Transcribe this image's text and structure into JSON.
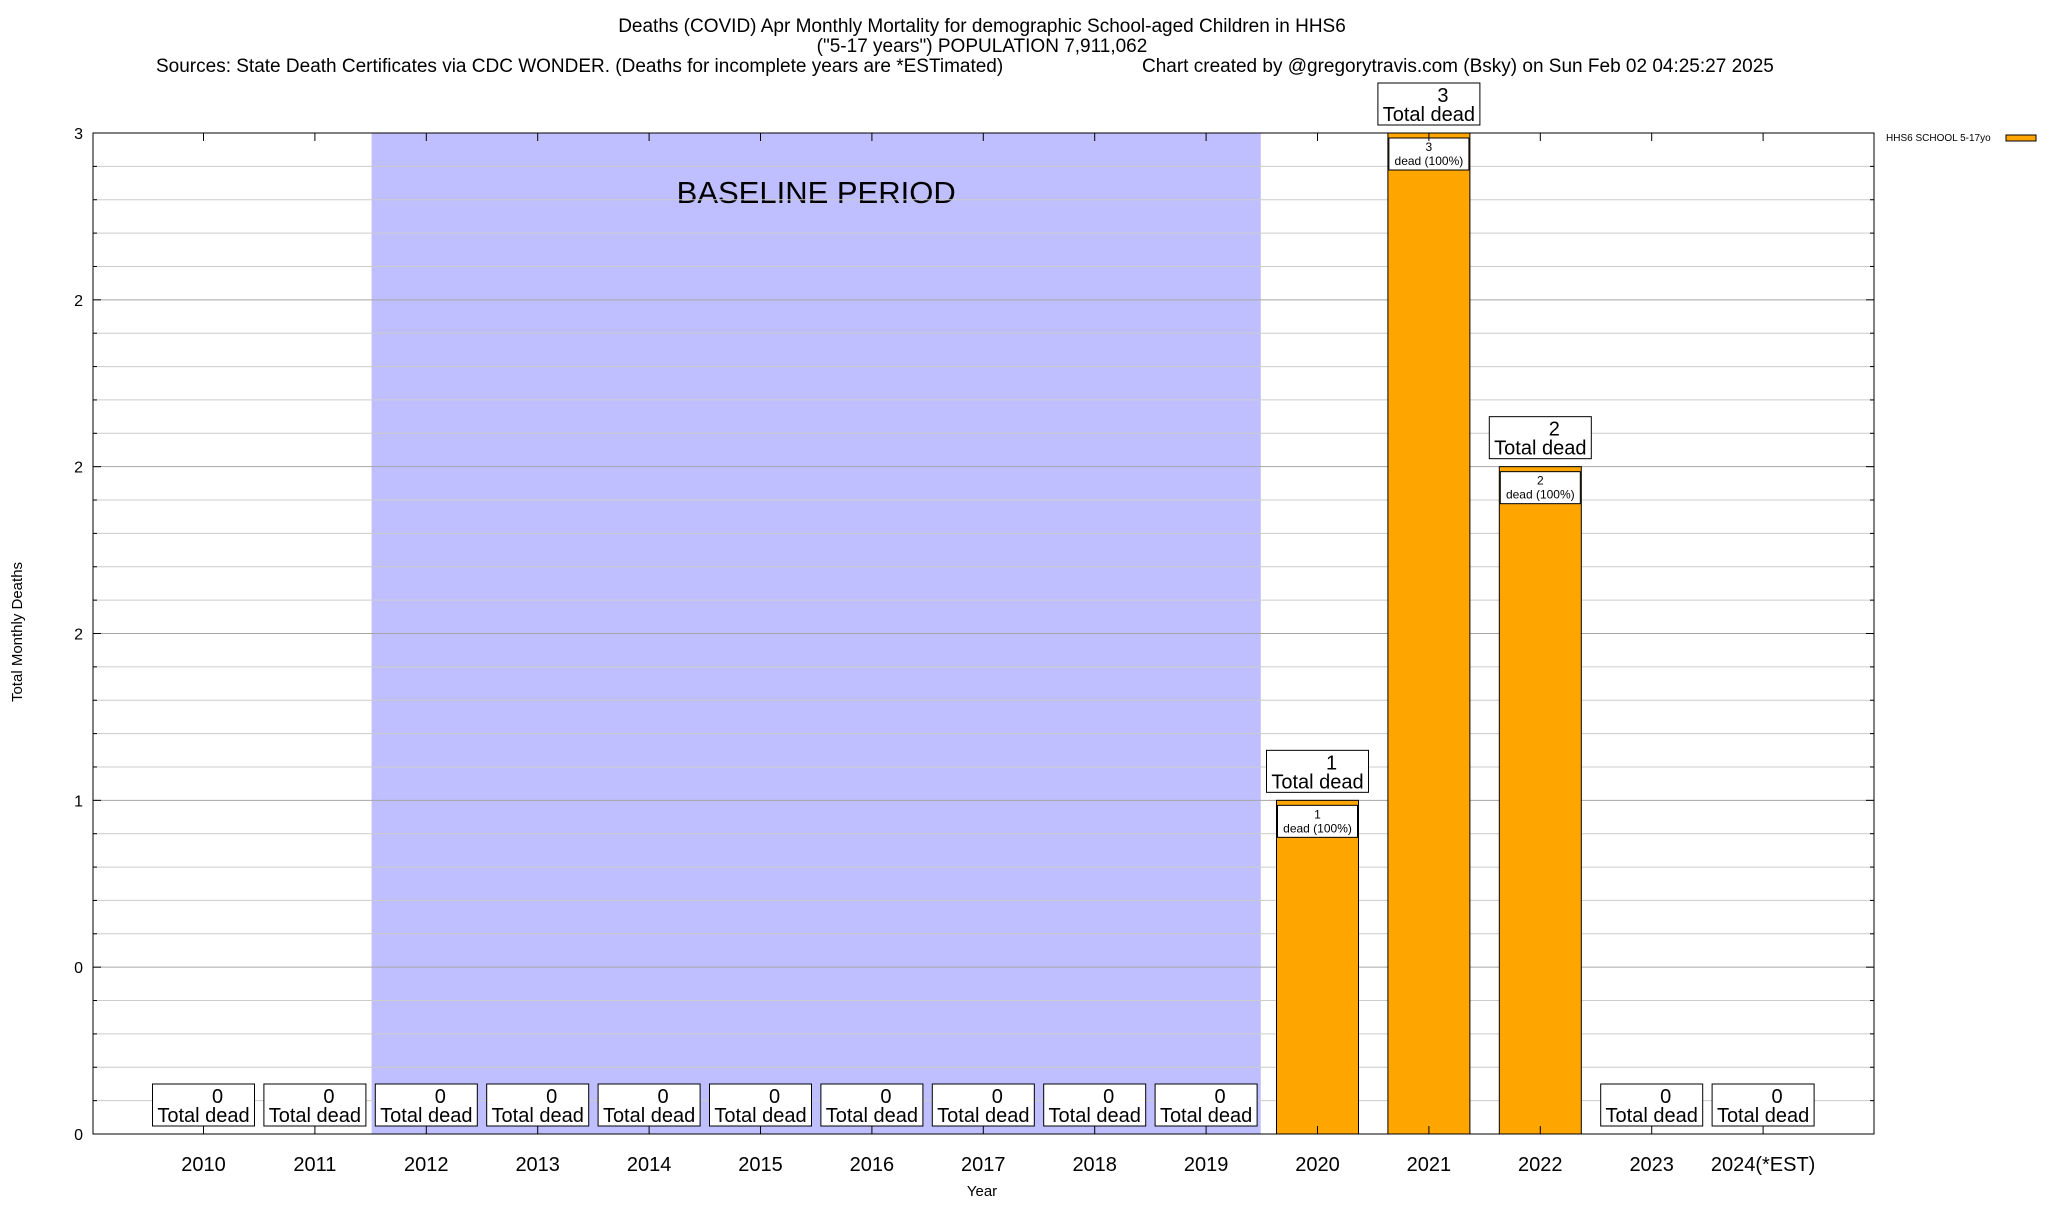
{
  "chart_data": {
    "type": "bar",
    "title_lines": [
      "Deaths (COVID) Apr Monthly Mortality for demographic School-aged Children in HHS6",
      "(\"5-17 years\") POPULATION 7,911,062"
    ],
    "sources": "Sources: State Death Certificates via CDC WONDER. (Deaths for incomplete years are *ESTimated)",
    "credit": "Chart created by @gregorytravis.com (Bsky) on Sun Feb 02 04:25:27 2025",
    "xlabel": "Year",
    "ylabel": "Total Monthly Deaths",
    "categories": [
      "2010",
      "2011",
      "2012",
      "2013",
      "2014",
      "2015",
      "2016",
      "2017",
      "2018",
      "2019",
      "2020",
      "2021",
      "2022",
      "2023",
      "2024(*EST)"
    ],
    "series": [
      {
        "name": "HHS6 SCHOOL 5-17yo",
        "color": "#ffa500",
        "values": [
          0,
          0,
          0,
          0,
          0,
          0,
          0,
          0,
          0,
          0,
          1,
          3,
          2,
          0,
          0
        ]
      }
    ],
    "ylim": [
      0,
      3
    ],
    "ytick_values": [
      0,
      0.5,
      1,
      1.5,
      2,
      2.5,
      3
    ],
    "ytick_labels": [
      "0",
      "0",
      "1",
      "2",
      "2",
      "2",
      "3"
    ],
    "minor_grid_step": 0.1,
    "grid": true,
    "legend_position": "top-right",
    "total_label": "Total dead",
    "segment_label_suffix": "dead (100%)",
    "baseline": {
      "label": "BASELINE PERIOD",
      "start": "2012",
      "end": "2019",
      "color": "#bfbfff"
    }
  }
}
